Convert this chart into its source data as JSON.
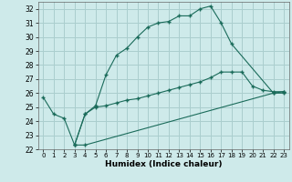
{
  "xlabel": "Humidex (Indice chaleur)",
  "bg_color": "#ceeaea",
  "grid_color": "#aacece",
  "line_color": "#1a6b5a",
  "xlim": [
    -0.5,
    23.5
  ],
  "ylim": [
    22,
    32.5
  ],
  "yticks": [
    22,
    23,
    24,
    25,
    26,
    27,
    28,
    29,
    30,
    31,
    32
  ],
  "xticks": [
    0,
    1,
    2,
    3,
    4,
    5,
    6,
    7,
    8,
    9,
    10,
    11,
    12,
    13,
    14,
    15,
    16,
    17,
    18,
    19,
    20,
    21,
    22,
    23
  ],
  "line1_x": [
    0,
    1,
    2,
    3,
    4,
    5,
    6,
    7,
    8,
    9,
    10,
    11,
    12,
    13,
    14,
    15,
    16,
    17,
    18,
    22,
    23
  ],
  "line1_y": [
    25.7,
    24.5,
    24.2,
    22.3,
    24.5,
    25.1,
    27.3,
    28.7,
    29.2,
    30.0,
    30.7,
    31.0,
    31.1,
    31.5,
    31.5,
    32.0,
    32.2,
    31.0,
    29.5,
    26.0,
    26.0
  ],
  "line2_x": [
    3,
    4,
    5,
    6,
    7,
    8,
    9,
    10,
    11,
    12,
    13,
    14,
    15,
    16,
    17,
    18,
    19,
    20,
    21,
    22,
    23
  ],
  "line2_y": [
    22.3,
    24.5,
    25.0,
    25.1,
    25.3,
    25.5,
    25.6,
    25.8,
    26.0,
    26.2,
    26.4,
    26.6,
    26.8,
    27.1,
    27.5,
    27.5,
    27.5,
    26.5,
    26.2,
    26.1,
    26.1
  ],
  "line3_x": [
    3,
    4,
    22,
    23
  ],
  "line3_y": [
    22.3,
    22.3,
    26.0,
    26.1
  ]
}
